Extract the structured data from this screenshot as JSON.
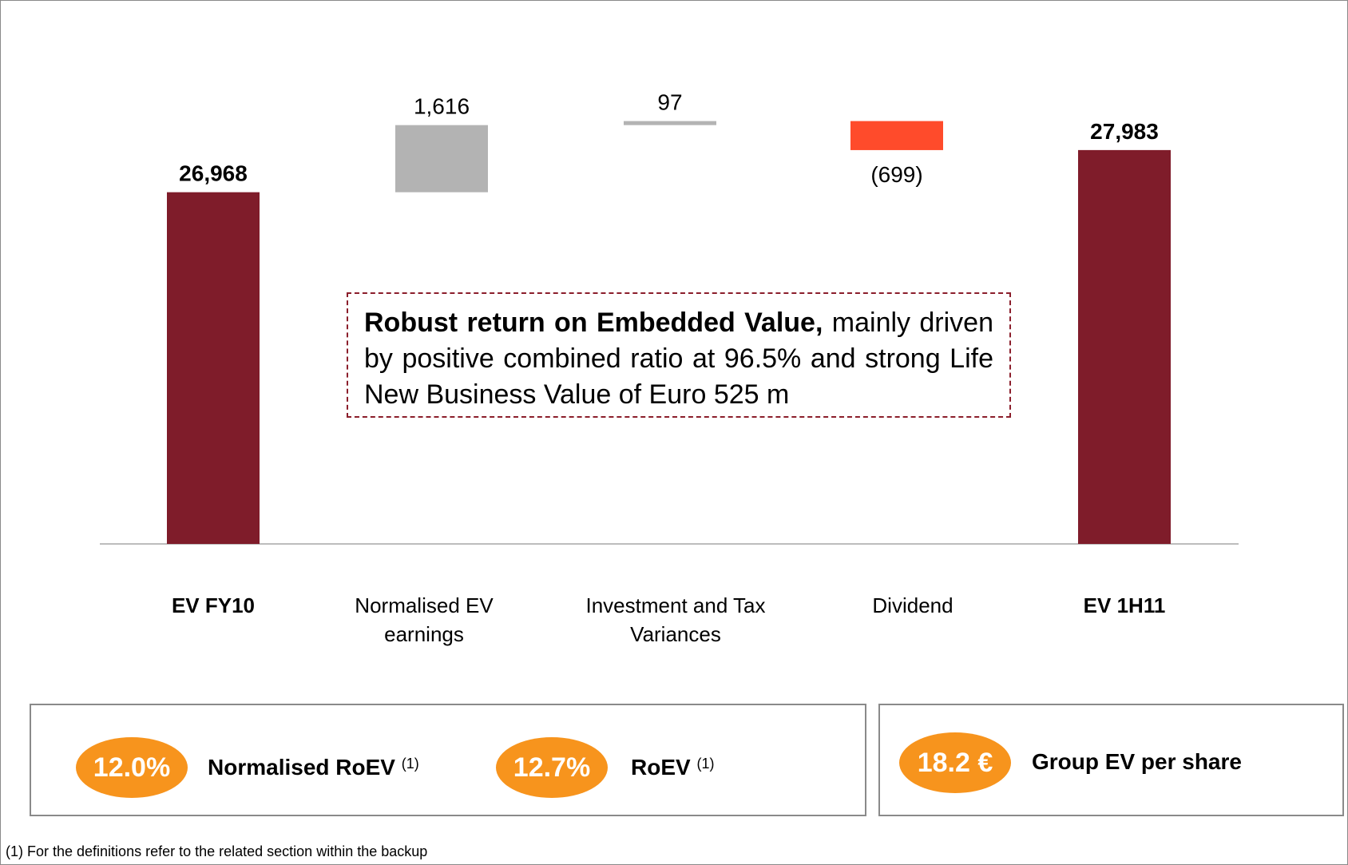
{
  "chart_data": {
    "type": "waterfall",
    "categories": [
      "EV FY10",
      "Normalised EV earnings",
      "Investment and Tax Variances",
      "Dividend",
      "EV 1H11"
    ],
    "values": [
      26968,
      1616,
      97,
      -699,
      27983
    ],
    "value_labels": [
      "26,968",
      "1,616",
      "97",
      "(699)",
      "27,983"
    ],
    "measure": [
      "absolute",
      "relative",
      "relative",
      "relative",
      "total"
    ],
    "colors": {
      "absolute": "#7f1c2a",
      "total": "#7f1c2a",
      "increase": "#b3b3b3",
      "decrease": "#ff4b2b"
    },
    "ylim": [
      18500,
      29500
    ],
    "annotation": {
      "bold": "Robust return on Embedded Value,",
      "text": "mainly driven by positive combined ratio at 96.5% and strong Life New Business Value of Euro 525 m"
    }
  },
  "kpis": [
    {
      "value": "12.0%",
      "label": "Normalised RoEV",
      "note": "(1)"
    },
    {
      "value": "12.7%",
      "label": "RoEV",
      "note": "(1)"
    },
    {
      "value": "18.2 €",
      "label": "Group EV per share"
    }
  ],
  "footnote": "(1)  For the definitions refer to the related section within the backup"
}
